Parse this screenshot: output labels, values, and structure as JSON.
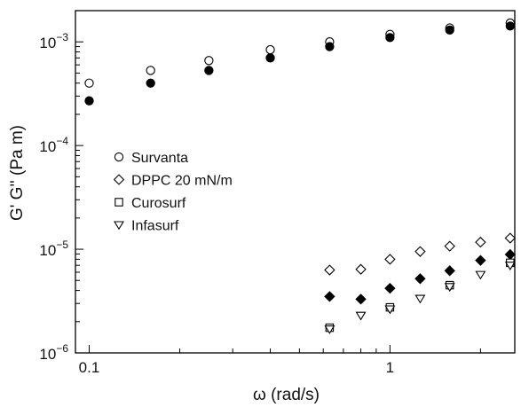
{
  "chart_data": {
    "type": "scatter",
    "x_scale": "log",
    "y_scale": "log",
    "xlim": [
      0.09,
      2.6
    ],
    "ylim": [
      1e-06,
      0.002
    ],
    "xlabel": "ω (rad/s)",
    "ylabel": "G' G'' (Pa m)",
    "x_ticks": [
      {
        "value": 0.1,
        "label": "0.1"
      },
      {
        "value": 1,
        "label": "1"
      }
    ],
    "y_ticks": [
      {
        "value": 1e-06,
        "base": "10",
        "exp": "−6"
      },
      {
        "value": 1e-05,
        "base": "10",
        "exp": "−5"
      },
      {
        "value": 0.0001,
        "base": "10",
        "exp": "−4"
      },
      {
        "value": 0.001,
        "base": "10",
        "exp": "−3"
      }
    ],
    "legend": {
      "placement": "center-left",
      "entries": [
        {
          "label": "Survanta",
          "marker": "circle"
        },
        {
          "label": "DPPC 20 mN/m",
          "marker": "diamond"
        },
        {
          "label": "Curosurf",
          "marker": "square"
        },
        {
          "label": "Infasurf",
          "marker": "triangle-down"
        }
      ]
    },
    "series": [
      {
        "marker": "circle",
        "fill": "open",
        "x": [
          0.1,
          0.16,
          0.25,
          0.4,
          0.63,
          1.0,
          1.58,
          2.51
        ],
        "y": [
          0.0004,
          0.00053,
          0.00066,
          0.00084,
          0.001,
          0.00118,
          0.00136,
          0.00152
        ]
      },
      {
        "marker": "circle",
        "fill": "filled",
        "x": [
          0.1,
          0.16,
          0.25,
          0.4,
          0.63,
          1.0,
          1.58,
          2.51
        ],
        "y": [
          0.00027,
          0.0004,
          0.00053,
          0.0007,
          0.0009,
          0.0011,
          0.0013,
          0.00142
        ]
      },
      {
        "marker": "diamond",
        "fill": "open",
        "x": [
          0.63,
          0.8,
          1.0,
          1.26,
          1.58,
          2.0,
          2.51
        ],
        "y": [
          6.3e-06,
          6.4e-06,
          8e-06,
          9.5e-06,
          1.07e-05,
          1.17e-05,
          1.28e-05
        ]
      },
      {
        "marker": "diamond",
        "fill": "filled",
        "x": [
          0.63,
          0.8,
          1.0,
          1.26,
          1.58,
          2.0,
          2.51
        ],
        "y": [
          3.5e-06,
          3.3e-06,
          4.2e-06,
          5.2e-06,
          6.2e-06,
          7.8e-06,
          8.9e-06
        ]
      },
      {
        "marker": "square",
        "fill": "open",
        "x": [
          0.63,
          1.0,
          1.58,
          2.51
        ],
        "y": [
          1.75e-06,
          2.75e-06,
          4.5e-06,
          7.4e-06
        ]
      },
      {
        "marker": "triangle-down",
        "fill": "open",
        "x": [
          0.63,
          0.8,
          1.0,
          1.26,
          1.58,
          2.0,
          2.51
        ],
        "y": [
          1.7e-06,
          2.3e-06,
          2.65e-06,
          3.35e-06,
          4.35e-06,
          5.7e-06,
          7e-06
        ]
      }
    ]
  }
}
